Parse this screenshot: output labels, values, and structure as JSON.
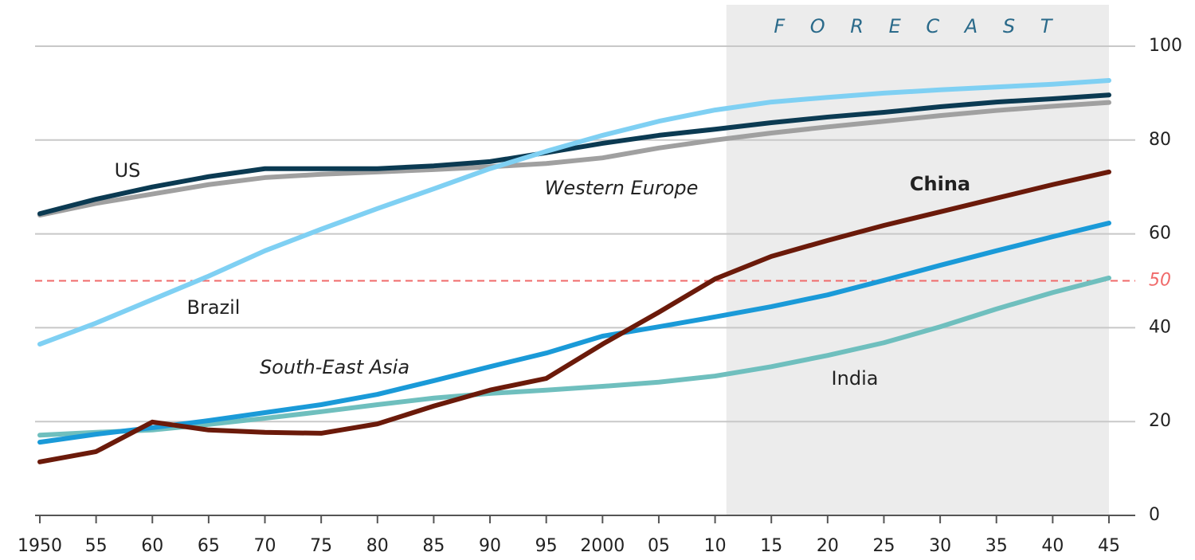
{
  "chart_data": {
    "type": "line",
    "x": [
      1950,
      1955,
      1960,
      1965,
      1970,
      1975,
      1980,
      1985,
      1990,
      1995,
      2000,
      2005,
      2010,
      2015,
      2020,
      2025,
      2030,
      2035,
      2040,
      2045
    ],
    "xlim": [
      1950,
      2045
    ],
    "xticks": [
      1950,
      {
        "value": 1955,
        "label": "55"
      },
      {
        "value": 1960,
        "label": "60"
      },
      {
        "value": 1965,
        "label": "65"
      },
      {
        "value": 1970,
        "label": "70"
      },
      {
        "value": 1975,
        "label": "75"
      },
      {
        "value": 1980,
        "label": "80"
      },
      {
        "value": 1985,
        "label": "85"
      },
      {
        "value": 1990,
        "label": "90"
      },
      {
        "value": 1995,
        "label": "95"
      },
      2000,
      {
        "value": 2005,
        "label": "05"
      },
      {
        "value": 2010,
        "label": "10"
      },
      {
        "value": 2015,
        "label": "15"
      },
      {
        "value": 2020,
        "label": "20"
      },
      {
        "value": 2025,
        "label": "25"
      },
      {
        "value": 2030,
        "label": "30"
      },
      {
        "value": 2035,
        "label": "35"
      },
      {
        "value": 2040,
        "label": "40"
      },
      {
        "value": 2045,
        "label": "45"
      }
    ],
    "ylim": [
      0,
      100
    ],
    "yticks": [
      0,
      20,
      40,
      60,
      80,
      100
    ],
    "grid": true,
    "reference_line": {
      "value": 50,
      "label": "50",
      "color": "#f06a6a"
    },
    "shaded_region": {
      "label": "F O R E C A S T",
      "xlim": [
        2011,
        2045
      ],
      "color": "#ececec"
    },
    "series": [
      {
        "name": "Western Europe",
        "color": "#a0a0a0",
        "values": [
          64,
          66.5,
          68.5,
          70.5,
          72,
          72.7,
          73.2,
          73.7,
          74.3,
          75,
          76.2,
          78.3,
          80,
          81.5,
          82.8,
          84,
          85.2,
          86.3,
          87.2,
          88
        ]
      },
      {
        "name": "US",
        "color": "#0b3a52",
        "values": [
          64.3,
          67.4,
          70,
          72.2,
          73.9,
          73.9,
          73.9,
          74.5,
          75.4,
          77.3,
          79.3,
          81,
          82.3,
          83.7,
          84.9,
          85.9,
          87.1,
          88.1,
          88.8,
          89.6
        ]
      },
      {
        "name": "Brazil",
        "color": "#7fd0f3",
        "values": [
          36.5,
          41,
          46,
          51,
          56.4,
          61,
          65.4,
          69.6,
          73.9,
          77.6,
          81,
          84,
          86.4,
          88.1,
          89.1,
          90,
          90.7,
          91.3,
          91.9,
          92.7
        ]
      },
      {
        "name": "India",
        "color": "#6fbfbe",
        "values": [
          17.1,
          17.7,
          18.2,
          19.4,
          20.7,
          22.1,
          23.6,
          25,
          26,
          26.7,
          27.5,
          28.4,
          29.7,
          31.7,
          34.1,
          36.8,
          40.2,
          44,
          47.5,
          50.6
        ]
      },
      {
        "name": "South-East Asia",
        "color": "#1a9ad8",
        "values": [
          15.6,
          17.3,
          18.7,
          20.2,
          21.9,
          23.6,
          25.8,
          28.7,
          31.7,
          34.6,
          38.2,
          40.2,
          42.3,
          44.5,
          47,
          50.1,
          53.3,
          56.4,
          59.4,
          62.3
        ]
      },
      {
        "name": "China",
        "color": "#6b1a0a",
        "values": [
          11.4,
          13.6,
          19.9,
          18.2,
          17.7,
          17.5,
          19.5,
          23.3,
          26.7,
          29.2,
          36.5,
          43.3,
          50.4,
          55.2,
          58.6,
          61.8,
          64.7,
          67.6,
          70.5,
          73.2
        ]
      }
    ]
  }
}
